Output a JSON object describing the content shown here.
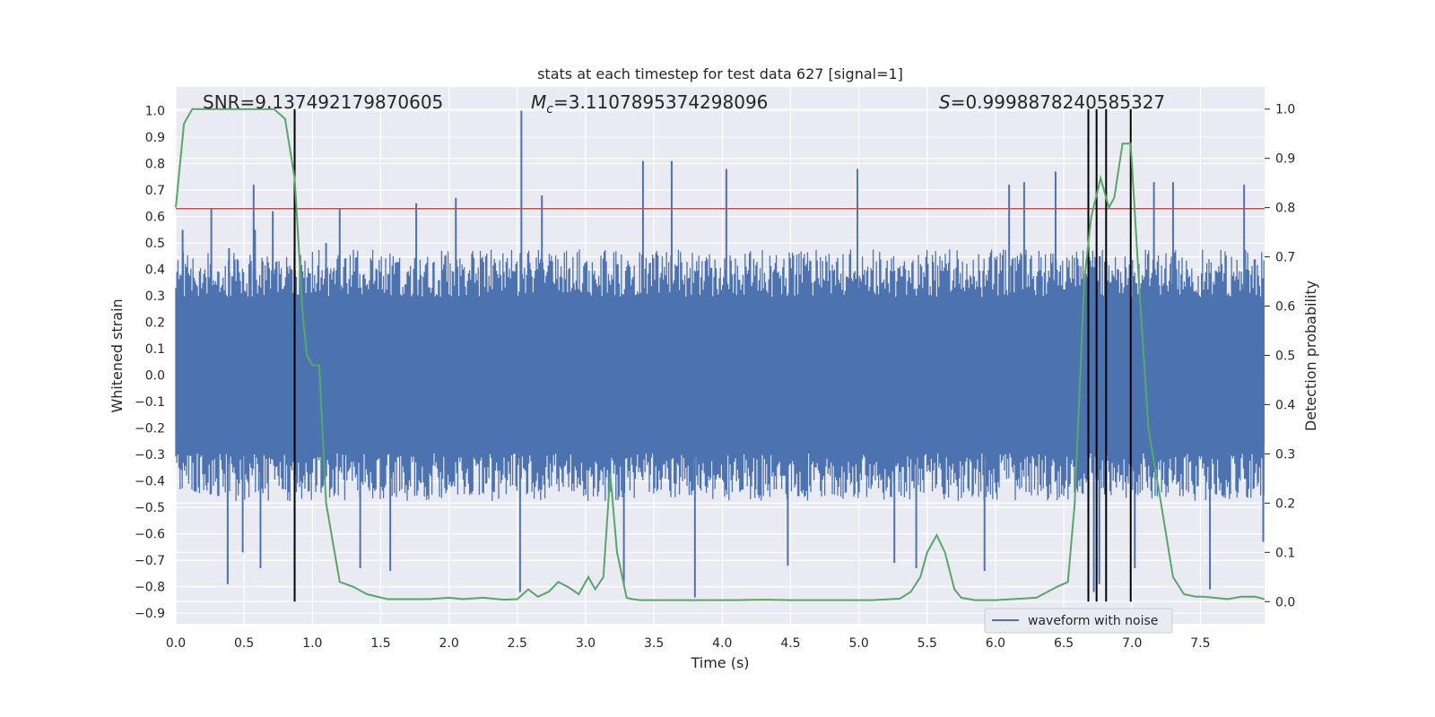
{
  "chart_data": {
    "type": "line",
    "title": "stats at each timestep for test data 627 [signal=1]",
    "xlabel": "Time (s)",
    "ylabel_left": "Whitened strain",
    "ylabel_right": "Detection probability",
    "xlim": [
      0.0,
      7.97
    ],
    "ylim_left": [
      -0.94,
      1.09
    ],
    "ylim_right": [
      -0.045,
      1.045
    ],
    "x_ticks": [
      "0.0",
      "0.5",
      "1.0",
      "1.5",
      "2.0",
      "2.5",
      "3.0",
      "3.5",
      "4.0",
      "4.5",
      "5.0",
      "5.5",
      "6.0",
      "6.5",
      "7.0",
      "7.5"
    ],
    "y_ticks_left": [
      "1.0",
      "0.9",
      "0.8",
      "0.7",
      "0.6",
      "0.5",
      "0.4",
      "0.3",
      "0.2",
      "0.1",
      "0.0",
      "−0.1",
      "−0.2",
      "−0.3",
      "−0.4",
      "−0.5",
      "−0.6",
      "−0.7",
      "−0.8",
      "−0.9"
    ],
    "y_ticks_right": [
      "1.0",
      "0.9",
      "0.8",
      "0.7",
      "0.6",
      "0.5",
      "0.4",
      "0.3",
      "0.2",
      "0.1",
      "0.0"
    ],
    "annotations": [
      {
        "text_prefix": "SNR=9.137492179870605",
        "value": "9.137492179870605"
      },
      {
        "text_prefix": "M",
        "subscript": "c",
        "text_suffix": "=3.1107895374298096"
      },
      {
        "text_prefix": "S",
        "text_suffix": "=0.9998878240585327"
      }
    ],
    "threshold_line": {
      "value_left_axis": 0.63,
      "color": "#c44e52"
    },
    "vertical_lines": [
      0.87,
      6.68,
      6.74,
      6.81,
      6.99
    ],
    "legend": {
      "entries": [
        "waveform with noise"
      ],
      "placement": "lower right"
    },
    "grid": true,
    "series": [
      {
        "name": "waveform with noise",
        "color": "#4c72b0",
        "envelope_upper": 0.35,
        "envelope_lower": -0.35,
        "spikes": [
          {
            "x": 0.05,
            "y": 0.55
          },
          {
            "x": 0.26,
            "y": 0.63
          },
          {
            "x": 0.39,
            "y": 0.48
          },
          {
            "x": 0.58,
            "y": 0.55
          },
          {
            "x": 0.57,
            "y": 0.72
          },
          {
            "x": 0.71,
            "y": 0.62
          },
          {
            "x": 0.38,
            "y": -0.79
          },
          {
            "x": 0.49,
            "y": -0.67
          },
          {
            "x": 0.62,
            "y": -0.73
          },
          {
            "x": 1.1,
            "y": 0.5
          },
          {
            "x": 1.2,
            "y": 0.63
          },
          {
            "x": 1.35,
            "y": -0.73
          },
          {
            "x": 1.57,
            "y": -0.74
          },
          {
            "x": 1.76,
            "y": 0.65
          },
          {
            "x": 2.05,
            "y": 0.67
          },
          {
            "x": 2.53,
            "y": 1.0
          },
          {
            "x": 2.52,
            "y": -0.82
          },
          {
            "x": 2.68,
            "y": 0.68
          },
          {
            "x": 3.28,
            "y": -0.79
          },
          {
            "x": 3.42,
            "y": 0.81
          },
          {
            "x": 3.63,
            "y": 0.81
          },
          {
            "x": 3.8,
            "y": -0.84
          },
          {
            "x": 4.03,
            "y": 0.78
          },
          {
            "x": 4.48,
            "y": -0.72
          },
          {
            "x": 4.99,
            "y": 0.78
          },
          {
            "x": 5.26,
            "y": -0.71
          },
          {
            "x": 5.42,
            "y": -0.73
          },
          {
            "x": 5.92,
            "y": -0.74
          },
          {
            "x": 6.1,
            "y": 0.72
          },
          {
            "x": 6.21,
            "y": 0.73
          },
          {
            "x": 6.44,
            "y": 0.77
          },
          {
            "x": 6.72,
            "y": -0.82
          },
          {
            "x": 6.76,
            "y": -0.79
          },
          {
            "x": 7.02,
            "y": -0.73
          },
          {
            "x": 7.16,
            "y": 0.73
          },
          {
            "x": 7.3,
            "y": 0.73
          },
          {
            "x": 7.57,
            "y": -0.81
          },
          {
            "x": 7.82,
            "y": 0.72
          },
          {
            "x": 7.96,
            "y": -0.63
          }
        ]
      },
      {
        "name": "",
        "axis": "right",
        "color": "#55a868",
        "x": [
          0.0,
          0.06,
          0.12,
          0.3,
          0.6,
          0.72,
          0.8,
          0.87,
          0.93,
          0.96,
          1.0,
          1.05,
          1.1,
          1.2,
          1.3,
          1.4,
          1.55,
          1.7,
          1.85,
          2.0,
          2.1,
          2.25,
          2.4,
          2.5,
          2.58,
          2.65,
          2.73,
          2.8,
          2.87,
          2.95,
          3.02,
          3.07,
          3.13,
          3.18,
          3.23,
          3.3,
          3.34,
          3.4,
          3.6,
          3.9,
          4.1,
          4.3,
          4.5,
          4.8,
          5.1,
          5.3,
          5.38,
          5.45,
          5.5,
          5.57,
          5.63,
          5.7,
          5.75,
          5.85,
          6.0,
          6.3,
          6.45,
          6.53,
          6.58,
          6.65,
          6.7,
          6.77,
          6.83,
          6.87,
          6.93,
          6.99,
          7.05,
          7.12,
          7.2,
          7.3,
          7.38,
          7.47,
          7.52,
          7.6,
          7.7,
          7.8,
          7.9,
          7.97
        ],
        "y": [
          0.8,
          0.97,
          1.0,
          1.0,
          1.0,
          1.0,
          0.98,
          0.86,
          0.58,
          0.5,
          0.48,
          0.48,
          0.2,
          0.04,
          0.03,
          0.015,
          0.005,
          0.005,
          0.005,
          0.008,
          0.005,
          0.008,
          0.004,
          0.005,
          0.025,
          0.01,
          0.02,
          0.04,
          0.03,
          0.015,
          0.05,
          0.025,
          0.05,
          0.26,
          0.1,
          0.008,
          0.005,
          0.003,
          0.003,
          0.003,
          0.003,
          0.004,
          0.003,
          0.003,
          0.003,
          0.006,
          0.02,
          0.05,
          0.1,
          0.135,
          0.1,
          0.025,
          0.008,
          0.003,
          0.003,
          0.008,
          0.03,
          0.04,
          0.2,
          0.65,
          0.78,
          0.86,
          0.8,
          0.82,
          0.93,
          0.93,
          0.65,
          0.35,
          0.22,
          0.05,
          0.015,
          0.01,
          0.01,
          0.008,
          0.005,
          0.01,
          0.01,
          0.005
        ]
      }
    ]
  }
}
